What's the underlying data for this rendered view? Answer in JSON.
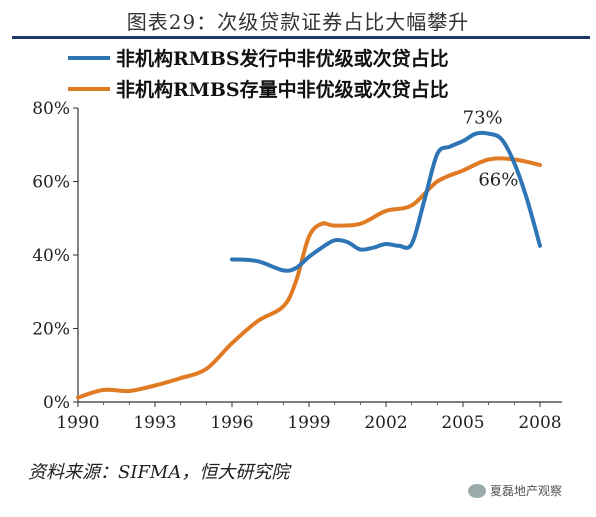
{
  "chart_data": {
    "type": "line",
    "title": "图表29：次级贷款证券占比大幅攀升",
    "source": "资料来源：SIFMA，恒大研究院",
    "watermark": "夏磊地产观察",
    "x_ticks": [
      "1990",
      "1993",
      "1996",
      "1999",
      "2002",
      "2005",
      "2008"
    ],
    "y_ticks": [
      "0%",
      "20%",
      "40%",
      "60%",
      "80%"
    ],
    "xlim": [
      1990,
      2008
    ],
    "ylim": [
      0,
      80
    ],
    "grid": false,
    "legend_position": "top",
    "series": [
      {
        "name": "非机构RMBS发行中非优级或次贷占比",
        "color": "#2e75b6",
        "x": [
          1996.0,
          1997.0,
          1998.0,
          1998.5,
          1999.0,
          1999.5,
          2000.0,
          2000.5,
          2001.0,
          2001.5,
          2002.0,
          2002.5,
          2003.0,
          2003.5,
          2004.0,
          2004.5,
          2005.0,
          2005.5,
          2006.0,
          2006.5,
          2007.0,
          2007.5,
          2008.0
        ],
        "values": [
          38.8,
          38.3,
          35.8,
          36.5,
          39.5,
          42.0,
          44.0,
          43.5,
          41.5,
          42.0,
          43.0,
          42.5,
          43.0,
          55.0,
          67.5,
          69.5,
          71.0,
          73.0,
          73.0,
          71.5,
          65.0,
          55.0,
          42.5
        ],
        "annotation": "73%",
        "annotation_at": [
          2006.0,
          73
        ]
      },
      {
        "name": "非机构RMBS存量中非优级或次贷占比",
        "color": "#e07b24",
        "x": [
          1990.0,
          1991.0,
          1992.0,
          1993.0,
          1994.0,
          1995.0,
          1996.0,
          1997.0,
          1998.0,
          1998.5,
          1999.0,
          1999.5,
          2000.0,
          2001.0,
          2002.0,
          2003.0,
          2004.0,
          2005.0,
          2006.0,
          2007.0,
          2008.0
        ],
        "values": [
          1.2,
          3.3,
          3.0,
          4.5,
          6.5,
          9.0,
          16.0,
          22.0,
          26.0,
          33.0,
          45.0,
          48.5,
          48.0,
          48.5,
          52.0,
          53.5,
          60.0,
          63.0,
          66.0,
          66.0,
          64.5
        ],
        "annotation": "66%",
        "annotation_at": [
          2006.3,
          66
        ]
      }
    ]
  }
}
